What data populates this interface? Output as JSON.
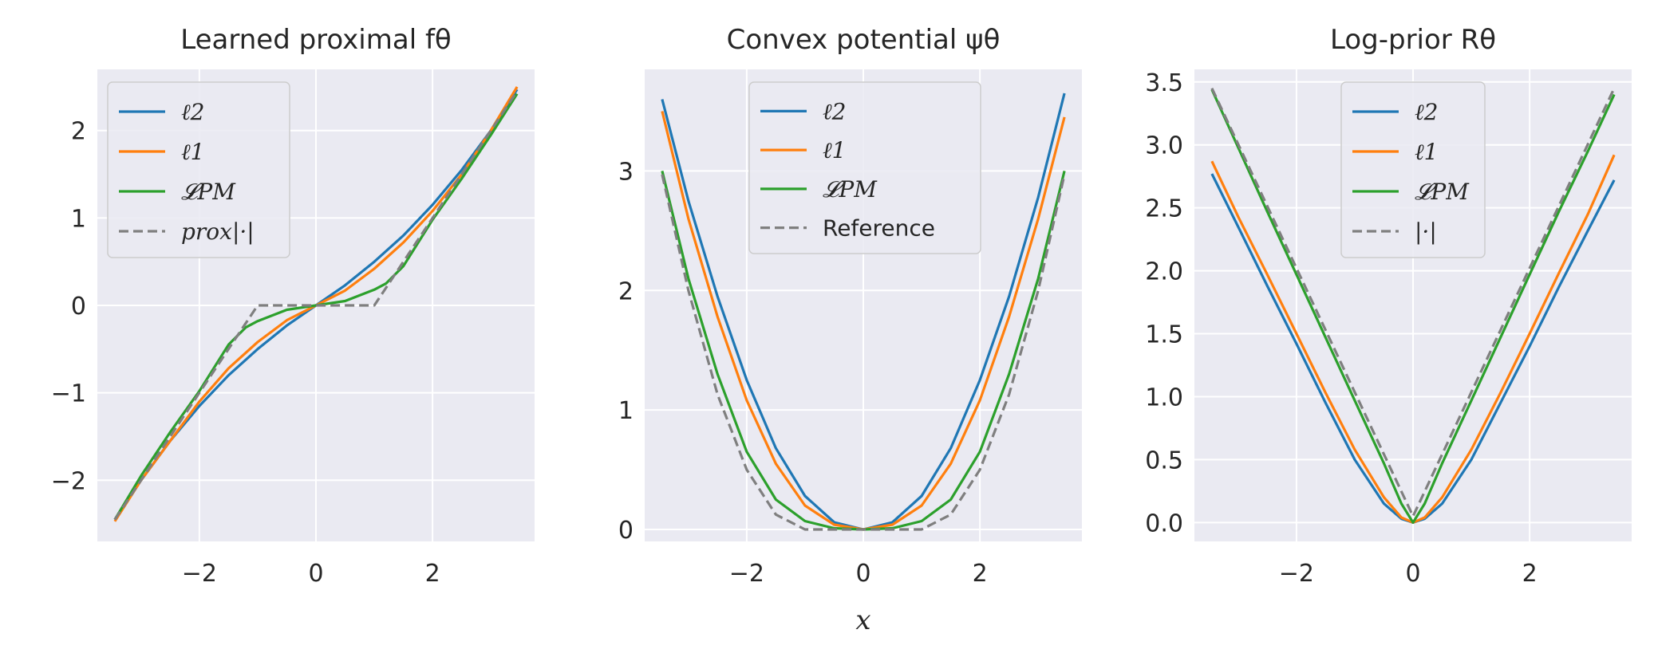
{
  "chart_data": [
    {
      "type": "line",
      "title": "Learned proximal fθ",
      "xlabel": "",
      "ylabel": "",
      "xlim": [
        -3.75,
        3.75
      ],
      "ylim": [
        -2.7,
        2.7
      ],
      "xticks": [
        -2,
        0,
        2
      ],
      "yticks": [
        -2,
        -1,
        0,
        1,
        2
      ],
      "xtick_labels": [
        "−2",
        "0",
        "2"
      ],
      "ytick_labels": [
        "−2",
        "−1",
        "0",
        "1",
        "2"
      ],
      "grid": true,
      "legend": "upper-left",
      "series": [
        {
          "name": "ℓ2",
          "color": "#1f77b4",
          "dashed": false,
          "x": [
            -3.45,
            -3.0,
            -2.5,
            -2.0,
            -1.5,
            -1.0,
            -0.5,
            0,
            0.5,
            1.0,
            1.5,
            2.0,
            2.5,
            3.0,
            3.45
          ],
          "y": [
            -2.45,
            -2.0,
            -1.55,
            -1.15,
            -0.8,
            -0.5,
            -0.23,
            0,
            0.23,
            0.5,
            0.8,
            1.15,
            1.55,
            2.0,
            2.47
          ]
        },
        {
          "name": "ℓ1",
          "color": "#ff7f0e",
          "dashed": false,
          "x": [
            -3.45,
            -3.0,
            -2.5,
            -2.0,
            -1.5,
            -1.0,
            -0.5,
            0,
            0.5,
            1.0,
            1.5,
            2.0,
            2.5,
            3.0,
            3.45
          ],
          "y": [
            -2.47,
            -2.0,
            -1.55,
            -1.1,
            -0.72,
            -0.42,
            -0.17,
            0,
            0.17,
            0.42,
            0.72,
            1.08,
            1.5,
            2.0,
            2.5
          ]
        },
        {
          "name": "𝓛PM",
          "color": "#2ca02c",
          "dashed": false,
          "x": [
            -3.45,
            -3.0,
            -2.5,
            -2.0,
            -1.5,
            -1.2,
            -1.0,
            -0.5,
            0,
            0.5,
            1.0,
            1.2,
            1.5,
            2.0,
            2.5,
            3.0,
            3.45
          ],
          "y": [
            -2.45,
            -1.95,
            -1.45,
            -0.98,
            -0.45,
            -0.25,
            -0.18,
            -0.05,
            0,
            0.05,
            0.18,
            0.25,
            0.45,
            0.98,
            1.45,
            1.95,
            2.42
          ]
        },
        {
          "name": "prox|·|",
          "color": "#7f7f7f",
          "dashed": true,
          "x": [
            -3.45,
            -1.0,
            1.0,
            3.45
          ],
          "y": [
            -2.45,
            0,
            0,
            2.45
          ]
        }
      ]
    },
    {
      "type": "line",
      "title": "Convex potential ψθ",
      "xlabel": "x",
      "ylabel": "",
      "xlim": [
        -3.75,
        3.75
      ],
      "ylim": [
        -0.1,
        3.85
      ],
      "xticks": [
        -2,
        0,
        2
      ],
      "yticks": [
        0,
        1,
        2,
        3
      ],
      "xtick_labels": [
        "−2",
        "0",
        "2"
      ],
      "ytick_labels": [
        "0",
        "1",
        "2",
        "3"
      ],
      "grid": true,
      "legend": "upper-center",
      "series": [
        {
          "name": "ℓ2",
          "color": "#1f77b4",
          "dashed": false,
          "x": [
            -3.45,
            -3.0,
            -2.5,
            -2.0,
            -1.5,
            -1.0,
            -0.5,
            0,
            0.5,
            1.0,
            1.5,
            2.0,
            2.5,
            3.0,
            3.45
          ],
          "y": [
            3.6,
            2.75,
            1.95,
            1.25,
            0.68,
            0.28,
            0.06,
            0,
            0.06,
            0.28,
            0.68,
            1.25,
            1.95,
            2.78,
            3.65
          ]
        },
        {
          "name": "ℓ1",
          "color": "#ff7f0e",
          "dashed": false,
          "x": [
            -3.45,
            -3.0,
            -2.5,
            -2.0,
            -1.5,
            -1.0,
            -0.5,
            0,
            0.5,
            1.0,
            1.5,
            2.0,
            2.5,
            3.0,
            3.45
          ],
          "y": [
            3.5,
            2.6,
            1.78,
            1.08,
            0.55,
            0.2,
            0.04,
            0,
            0.04,
            0.2,
            0.55,
            1.08,
            1.78,
            2.6,
            3.45
          ]
        },
        {
          "name": "𝓛PM",
          "color": "#2ca02c",
          "dashed": false,
          "x": [
            -3.45,
            -3.0,
            -2.5,
            -2.0,
            -1.5,
            -1.0,
            -0.5,
            0,
            0.5,
            1.0,
            1.5,
            2.0,
            2.5,
            3.0,
            3.45
          ],
          "y": [
            3.0,
            2.1,
            1.3,
            0.65,
            0.25,
            0.07,
            0.01,
            0,
            0.01,
            0.07,
            0.25,
            0.65,
            1.3,
            2.1,
            3.0
          ]
        },
        {
          "name": "Reference",
          "color": "#7f7f7f",
          "dashed": true,
          "x": [
            -3.45,
            -3.0,
            -2.5,
            -2.0,
            -1.5,
            -1.0,
            1.0,
            1.5,
            2.0,
            2.5,
            3.0,
            3.45
          ],
          "y": [
            2.97,
            2.0,
            1.13,
            0.5,
            0.125,
            0,
            0,
            0.125,
            0.5,
            1.13,
            2.0,
            2.97
          ]
        }
      ]
    },
    {
      "type": "line",
      "title": "Log-prior Rθ",
      "xlabel": "",
      "ylabel": "",
      "xlim": [
        -3.75,
        3.75
      ],
      "ylim": [
        -0.15,
        3.6
      ],
      "xticks": [
        -2,
        0,
        2
      ],
      "yticks": [
        0.0,
        0.5,
        1.0,
        1.5,
        2.0,
        2.5,
        3.0,
        3.5
      ],
      "xtick_labels": [
        "−2",
        "0",
        "2"
      ],
      "ytick_labels": [
        "0.0",
        "0.5",
        "1.0",
        "1.5",
        "2.0",
        "2.5",
        "3.0",
        "3.5"
      ],
      "grid": true,
      "legend": "upper-center",
      "series": [
        {
          "name": "ℓ2",
          "color": "#1f77b4",
          "dashed": false,
          "x": [
            -3.45,
            -3.0,
            -2.5,
            -2.0,
            -1.5,
            -1.0,
            -0.5,
            -0.2,
            0,
            0.2,
            0.5,
            1.0,
            1.5,
            2.0,
            2.5,
            3.0,
            3.45
          ],
          "y": [
            2.77,
            2.35,
            1.88,
            1.42,
            0.95,
            0.5,
            0.15,
            0.03,
            0,
            0.03,
            0.15,
            0.5,
            0.95,
            1.4,
            1.87,
            2.32,
            2.72
          ]
        },
        {
          "name": "ℓ1",
          "color": "#ff7f0e",
          "dashed": false,
          "x": [
            -3.45,
            -3.0,
            -2.5,
            -2.0,
            -1.5,
            -1.0,
            -0.5,
            -0.2,
            0,
            0.2,
            0.5,
            1.0,
            1.5,
            2.0,
            2.5,
            3.0,
            3.45
          ],
          "y": [
            2.87,
            2.43,
            1.97,
            1.5,
            1.03,
            0.58,
            0.2,
            0.04,
            0,
            0.04,
            0.2,
            0.58,
            1.03,
            1.5,
            1.98,
            2.45,
            2.92
          ]
        },
        {
          "name": "𝓛PM",
          "color": "#2ca02c",
          "dashed": false,
          "x": [
            -3.45,
            -3.0,
            -2.5,
            -2.0,
            -1.5,
            -1.0,
            -0.5,
            -0.2,
            0,
            0.2,
            0.5,
            1.0,
            1.5,
            2.0,
            2.5,
            3.0,
            3.45
          ],
          "y": [
            3.44,
            2.98,
            2.47,
            1.97,
            1.47,
            0.97,
            0.47,
            0.15,
            0,
            0.15,
            0.47,
            0.97,
            1.47,
            1.97,
            2.47,
            2.95,
            3.4
          ]
        },
        {
          "name": "|·|",
          "color": "#7f7f7f",
          "dashed": true,
          "x": [
            -3.45,
            0,
            3.45
          ],
          "y": [
            3.45,
            0.05,
            3.45
          ]
        }
      ]
    }
  ]
}
